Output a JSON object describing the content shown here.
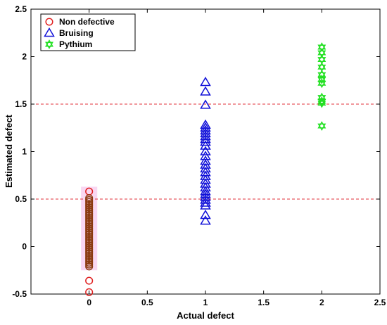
{
  "chart_data": {
    "type": "scatter",
    "xlabel": "Actual defect",
    "ylabel": "Estimated defect",
    "xlim": [
      -0.5,
      2.5
    ],
    "ylim": [
      -0.5,
      2.5
    ],
    "xticks": [
      "0",
      "0.5",
      "1",
      "1.5",
      "2",
      "2.5"
    ],
    "yticks": [
      "-0.5",
      "0",
      "0.5",
      "1",
      "1.5",
      "2",
      "2.5"
    ],
    "grid": false,
    "legend_position": "top-left",
    "thresholds": [
      0.5,
      1.5
    ],
    "threshold_color": "#e0303a",
    "highlight": {
      "x": [
        -0.07,
        0.07
      ],
      "y": [
        -0.25,
        0.63
      ],
      "color": "#f9d7f2"
    },
    "series": [
      {
        "name": "Non defective",
        "marker": "circle",
        "color": "#e02020",
        "overlap_color": "#8a3a10",
        "x": 0,
        "y": [
          0.58,
          0.51,
          0.49,
          0.47,
          0.45,
          0.43,
          0.41,
          0.39,
          0.37,
          0.35,
          0.33,
          0.31,
          0.29,
          0.27,
          0.25,
          0.23,
          0.21,
          0.19,
          0.17,
          0.15,
          0.13,
          0.11,
          0.09,
          0.07,
          0.05,
          0.03,
          0.01,
          -0.01,
          -0.03,
          -0.05,
          -0.07,
          -0.09,
          -0.11,
          -0.13,
          -0.15,
          -0.17,
          -0.19,
          -0.21,
          -0.36,
          -0.48
        ]
      },
      {
        "name": "Bruising",
        "marker": "triangle",
        "color": "#1010d8",
        "x": 1,
        "y": [
          1.73,
          1.63,
          1.49,
          1.28,
          1.25,
          1.22,
          1.19,
          1.16,
          1.13,
          1.1,
          1.06,
          1.0,
          0.95,
          0.9,
          0.86,
          0.82,
          0.78,
          0.74,
          0.7,
          0.66,
          0.62,
          0.58,
          0.55,
          0.52,
          0.49,
          0.46,
          0.43,
          0.33,
          0.27
        ]
      },
      {
        "name": "Pythium",
        "marker": "hexagram",
        "color": "#22e022",
        "x": 2,
        "y": [
          2.1,
          2.04,
          1.97,
          1.89,
          1.81,
          1.76,
          1.72,
          1.57,
          1.53,
          1.51,
          1.27
        ]
      }
    ]
  }
}
